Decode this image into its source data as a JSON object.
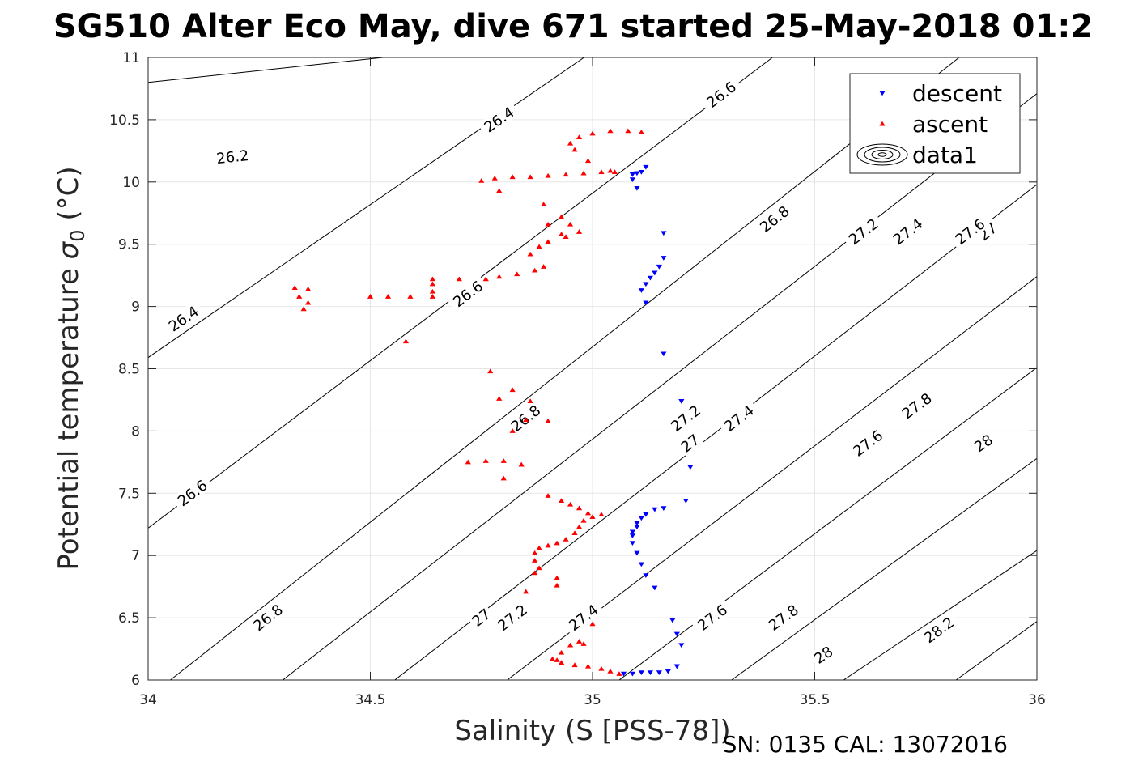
{
  "chart_data": {
    "type": "scatter",
    "title": "SG510 Alter Eco May, dive 671 started 25-May-2018 01:2",
    "xlabel": "Salinity (S [PSS-78])",
    "ylabel_text": "Potential temperature ",
    "ylabel_sigma": "σ",
    "ylabel_sub": "0",
    "ylabel_unit": " (°C)",
    "footer": "SN: 0135  CAL: 13072016",
    "xlim": [
      34,
      36
    ],
    "ylim": [
      6,
      11
    ],
    "grid": true,
    "legend_position": "top-right",
    "x_ticks": [
      {
        "value": 34,
        "label": "34"
      },
      {
        "value": 34.5,
        "label": "34.5"
      },
      {
        "value": 35,
        "label": "35"
      },
      {
        "value": 35.5,
        "label": "35.5"
      },
      {
        "value": 36,
        "label": "36"
      }
    ],
    "y_ticks": [
      {
        "value": 6,
        "label": "6"
      },
      {
        "value": 6.5,
        "label": "6.5"
      },
      {
        "value": 7,
        "label": "7"
      },
      {
        "value": 7.5,
        "label": "7.5"
      },
      {
        "value": 8,
        "label": "8"
      },
      {
        "value": 8.5,
        "label": "8.5"
      },
      {
        "value": 9,
        "label": "9"
      },
      {
        "value": 9.5,
        "label": "9.5"
      },
      {
        "value": 10,
        "label": "10"
      },
      {
        "value": 10.5,
        "label": "10.5"
      },
      {
        "value": 11,
        "label": "11"
      }
    ],
    "colors": {
      "descent": "#0000ff",
      "ascent": "#ff0000",
      "contour": "#000000",
      "grid": "#e6e6e6"
    },
    "legend": [
      {
        "label": "descent",
        "marker": "triangle-down",
        "color": "#0000ff"
      },
      {
        "label": "ascent",
        "marker": "triangle-up",
        "color": "#ff0000"
      },
      {
        "label": "data1",
        "marker": "contour-ellipses",
        "color": "#000000"
      }
    ],
    "contours": [
      {
        "level": 26.2,
        "points": [
          [
            34,
            10.8
          ],
          [
            34.529,
            11.0
          ]
        ],
        "labels": [
          {
            "x": 34.19,
            "y": 10.2,
            "text": "26.2"
          }
        ]
      },
      {
        "level": 26.4,
        "points": [
          [
            34,
            8.59
          ],
          [
            34.981,
            11.0
          ]
        ],
        "labels": [
          {
            "x": 34.08,
            "y": 8.9,
            "text": "26.4"
          },
          {
            "x": 34.79,
            "y": 10.5,
            "text": "26.4"
          }
        ]
      },
      {
        "level": 26.6,
        "points": [
          [
            34,
            7.22
          ],
          [
            35.405,
            11.0
          ]
        ],
        "labels": [
          {
            "x": 34.1,
            "y": 7.5,
            "text": "26.6"
          },
          {
            "x": 34.72,
            "y": 9.1,
            "text": "26.6"
          },
          {
            "x": 35.29,
            "y": 10.7,
            "text": "26.6"
          }
        ]
      },
      {
        "level": 26.8,
        "points": [
          [
            34.05,
            6.0
          ],
          [
            35.825,
            11.0
          ]
        ],
        "labels": [
          {
            "x": 34.27,
            "y": 6.5,
            "text": "26.8"
          },
          {
            "x": 34.85,
            "y": 8.1,
            "text": "26.8"
          },
          {
            "x": 35.41,
            "y": 9.7,
            "text": "26.8"
          }
        ]
      },
      {
        "level": 27.0,
        "points": [
          [
            34.303,
            6.0
          ],
          [
            36,
            10.71
          ]
        ],
        "labels": [
          {
            "x": 34.75,
            "y": 6.5,
            "text": "27"
          },
          {
            "x": 35.22,
            "y": 7.9,
            "text": "27"
          },
          {
            "x": 35.89,
            "y": 9.6,
            "text": "27"
          }
        ]
      },
      {
        "level": 27.2,
        "points": [
          [
            34.555,
            6.0
          ],
          [
            36,
            9.98
          ]
        ],
        "labels": [
          {
            "x": 34.82,
            "y": 6.5,
            "text": "27.2"
          },
          {
            "x": 35.21,
            "y": 8.1,
            "text": "27.2"
          },
          {
            "x": 35.61,
            "y": 9.6,
            "text": "27.2"
          }
        ]
      },
      {
        "level": 27.4,
        "points": [
          [
            34.808,
            6.0
          ],
          [
            36,
            9.24
          ]
        ],
        "labels": [
          {
            "x": 34.98,
            "y": 6.5,
            "text": "27.4"
          },
          {
            "x": 35.33,
            "y": 8.1,
            "text": "27.4"
          },
          {
            "x": 35.71,
            "y": 9.6,
            "text": "27.4"
          }
        ]
      },
      {
        "level": 27.6,
        "points": [
          [
            35.06,
            6.0
          ],
          [
            36,
            8.51
          ]
        ],
        "labels": [
          {
            "x": 35.27,
            "y": 6.5,
            "text": "27.6"
          },
          {
            "x": 35.62,
            "y": 7.9,
            "text": "27.6"
          },
          {
            "x": 35.85,
            "y": 9.6,
            "text": "27.6"
          }
        ]
      },
      {
        "level": 27.8,
        "points": [
          [
            35.313,
            6.0
          ],
          [
            36,
            7.78
          ]
        ],
        "labels": [
          {
            "x": 35.43,
            "y": 6.5,
            "text": "27.8"
          },
          {
            "x": 35.73,
            "y": 8.2,
            "text": "27.8"
          }
        ]
      },
      {
        "level": 28.0,
        "points": [
          [
            35.565,
            6.0
          ],
          [
            36,
            7.04
          ]
        ],
        "labels": [
          {
            "x": 35.52,
            "y": 6.2,
            "text": "28"
          },
          {
            "x": 35.88,
            "y": 7.9,
            "text": "28"
          }
        ]
      },
      {
        "level": 28.2,
        "points": [
          [
            35.818,
            6.0
          ],
          [
            36,
            6.47
          ]
        ],
        "labels": [
          {
            "x": 35.78,
            "y": 6.4,
            "text": "28.2"
          }
        ]
      }
    ],
    "series": [
      {
        "name": "descent",
        "marker": "triangle-down",
        "color": "#0000ff",
        "points": [
          [
            35.07,
            6.05
          ],
          [
            35.09,
            6.05
          ],
          [
            35.11,
            6.06
          ],
          [
            35.13,
            6.06
          ],
          [
            35.15,
            6.06
          ],
          [
            35.17,
            6.07
          ],
          [
            35.19,
            6.11
          ],
          [
            35.2,
            6.28
          ],
          [
            35.19,
            6.37
          ],
          [
            35.18,
            6.48
          ],
          [
            35.14,
            6.74
          ],
          [
            35.12,
            6.84
          ],
          [
            35.11,
            6.93
          ],
          [
            35.1,
            7.02
          ],
          [
            35.09,
            7.1
          ],
          [
            35.09,
            7.16
          ],
          [
            35.09,
            7.19
          ],
          [
            35.1,
            7.23
          ],
          [
            35.1,
            7.26
          ],
          [
            35.11,
            7.3
          ],
          [
            35.12,
            7.33
          ],
          [
            35.14,
            7.37
          ],
          [
            35.16,
            7.38
          ],
          [
            35.21,
            7.44
          ],
          [
            35.22,
            7.71
          ],
          [
            35.2,
            8.24
          ],
          [
            35.16,
            8.62
          ],
          [
            35.12,
            9.03
          ],
          [
            35.11,
            9.13
          ],
          [
            35.12,
            9.18
          ],
          [
            35.13,
            9.23
          ],
          [
            35.14,
            9.27
          ],
          [
            35.15,
            9.32
          ],
          [
            35.16,
            9.39
          ],
          [
            35.16,
            9.59
          ],
          [
            35.1,
            9.95
          ],
          [
            35.09,
            10.02
          ],
          [
            35.09,
            10.06
          ],
          [
            35.1,
            10.07
          ],
          [
            35.11,
            10.08
          ],
          [
            35.12,
            10.12
          ]
        ]
      },
      {
        "name": "ascent",
        "marker": "triangle-up",
        "color": "#ff0000",
        "points": [
          [
            35.06,
            6.05
          ],
          [
            35.04,
            6.07
          ],
          [
            35.02,
            6.09
          ],
          [
            34.99,
            6.11
          ],
          [
            34.96,
            6.12
          ],
          [
            34.93,
            6.14
          ],
          [
            34.92,
            6.16
          ],
          [
            34.91,
            6.17
          ],
          [
            34.93,
            6.22
          ],
          [
            34.95,
            6.28
          ],
          [
            34.98,
            6.29
          ],
          [
            34.97,
            6.31
          ],
          [
            35.0,
            6.45
          ],
          [
            34.85,
            6.71
          ],
          [
            34.92,
            6.76
          ],
          [
            34.92,
            6.82
          ],
          [
            34.87,
            6.86
          ],
          [
            34.88,
            6.9
          ],
          [
            34.87,
            6.96
          ],
          [
            34.87,
            7.02
          ],
          [
            34.88,
            7.06
          ],
          [
            34.9,
            7.08
          ],
          [
            34.92,
            7.1
          ],
          [
            34.94,
            7.13
          ],
          [
            34.96,
            7.18
          ],
          [
            34.97,
            7.23
          ],
          [
            34.98,
            7.28
          ],
          [
            35.0,
            7.31
          ],
          [
            35.02,
            7.33
          ],
          [
            34.99,
            7.34
          ],
          [
            34.97,
            7.38
          ],
          [
            34.95,
            7.41
          ],
          [
            34.93,
            7.44
          ],
          [
            34.9,
            7.48
          ],
          [
            34.84,
            7.73
          ],
          [
            34.8,
            7.62
          ],
          [
            34.8,
            7.76
          ],
          [
            34.76,
            7.76
          ],
          [
            34.72,
            7.75
          ],
          [
            34.82,
            8.0
          ],
          [
            34.85,
            8.09
          ],
          [
            34.9,
            8.08
          ],
          [
            34.86,
            8.24
          ],
          [
            34.82,
            8.33
          ],
          [
            34.79,
            8.26
          ],
          [
            34.77,
            8.48
          ],
          [
            34.58,
            8.72
          ],
          [
            34.5,
            9.08
          ],
          [
            34.54,
            9.08
          ],
          [
            34.59,
            9.08
          ],
          [
            34.64,
            9.08
          ],
          [
            34.64,
            9.12
          ],
          [
            34.64,
            9.18
          ],
          [
            34.64,
            9.22
          ],
          [
            34.7,
            9.22
          ],
          [
            34.76,
            9.22
          ],
          [
            34.79,
            9.24
          ],
          [
            34.83,
            9.26
          ],
          [
            34.87,
            9.29
          ],
          [
            34.89,
            9.32
          ],
          [
            34.86,
            9.42
          ],
          [
            34.88,
            9.48
          ],
          [
            34.9,
            9.52
          ],
          [
            34.94,
            9.56
          ],
          [
            34.97,
            9.6
          ],
          [
            34.95,
            9.66
          ],
          [
            34.93,
            9.72
          ],
          [
            34.89,
            9.82
          ],
          [
            34.9,
            9.66
          ],
          [
            34.93,
            9.58
          ],
          [
            34.79,
            9.93
          ],
          [
            34.75,
            10.01
          ],
          [
            34.78,
            10.03
          ],
          [
            34.82,
            10.04
          ],
          [
            34.86,
            10.04
          ],
          [
            34.9,
            10.05
          ],
          [
            34.94,
            10.06
          ],
          [
            34.98,
            10.07
          ],
          [
            35.02,
            10.08
          ],
          [
            35.05,
            10.08
          ],
          [
            35.04,
            10.09
          ],
          [
            34.99,
            10.17
          ],
          [
            34.96,
            10.26
          ],
          [
            34.95,
            10.31
          ],
          [
            34.97,
            10.36
          ],
          [
            35.0,
            10.39
          ],
          [
            35.04,
            10.41
          ],
          [
            35.08,
            10.41
          ],
          [
            35.11,
            10.4
          ],
          [
            34.36,
            9.14
          ],
          [
            34.34,
            9.08
          ],
          [
            34.36,
            9.03
          ],
          [
            34.33,
            9.15
          ],
          [
            34.35,
            8.98
          ]
        ]
      }
    ]
  }
}
